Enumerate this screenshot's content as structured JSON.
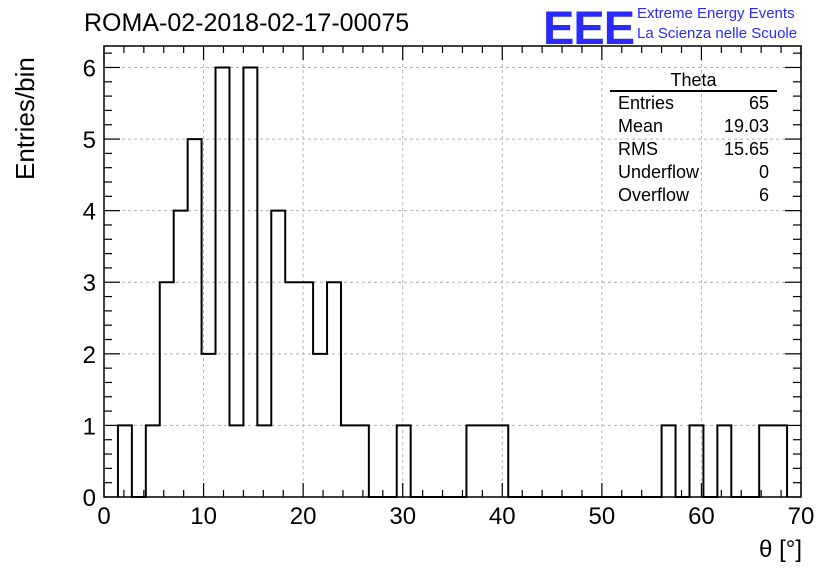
{
  "header": {
    "run_id": "ROMA-02-2018-02-17-00075",
    "logo": "EEE",
    "logo_line1": "Extreme Energy Events",
    "logo_line2": "La Scienza nelle Scuole"
  },
  "stats_box": {
    "title": "Theta",
    "rows": [
      {
        "label": "Entries",
        "value": "65"
      },
      {
        "label": "Mean",
        "value": "19.03"
      },
      {
        "label": "RMS",
        "value": "15.65"
      },
      {
        "label": "Underflow",
        "value": "0"
      },
      {
        "label": "Overflow",
        "value": "6"
      }
    ]
  },
  "colors": {
    "line": "#000000",
    "grid": "#b4b4b4",
    "logo": "#2a2aff"
  },
  "chart_data": {
    "type": "histogram",
    "xlabel": "θ [°]",
    "ylabel": "Entries/bin",
    "xlim": [
      0,
      70
    ],
    "ylim": [
      0,
      6.3
    ],
    "x_ticks": [
      0,
      10,
      20,
      30,
      40,
      50,
      60,
      70
    ],
    "y_ticks": [
      0,
      1,
      2,
      3,
      4,
      5,
      6
    ],
    "grid": true,
    "bin_width": 1.4,
    "bin_start": 1.4,
    "values": [
      1,
      0,
      1,
      3,
      4,
      5,
      2,
      6,
      1,
      6,
      1,
      4,
      3,
      3,
      2,
      3,
      1,
      1,
      0,
      0,
      1,
      0,
      0,
      0,
      0,
      1,
      1,
      1,
      0,
      0,
      0,
      0,
      0,
      0,
      0,
      0,
      0,
      0,
      0,
      1,
      0,
      1,
      0,
      1,
      0,
      0,
      1,
      1
    ]
  }
}
